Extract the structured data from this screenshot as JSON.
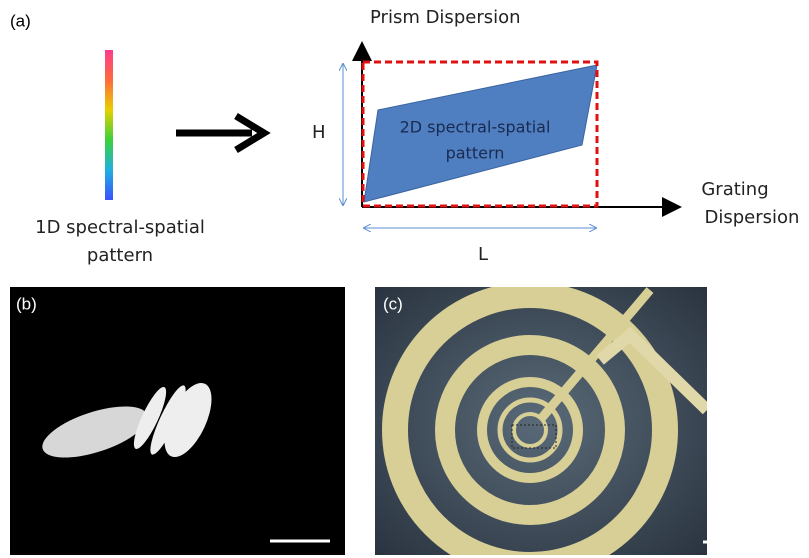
{
  "panel_a": {
    "label": "(a)",
    "left_pattern": [
      "1D spectral-spatial",
      "pattern"
    ],
    "y_axis": "Prism Dispersion",
    "x_axis": [
      "Grating",
      "Dispersion"
    ],
    "height_label": "H",
    "length_label": "L",
    "inner_pattern": [
      "2D spectral-spatial",
      "pattern"
    ]
  },
  "panel_b": {
    "label": "(b)"
  },
  "panel_c": {
    "label": "(c)"
  }
}
